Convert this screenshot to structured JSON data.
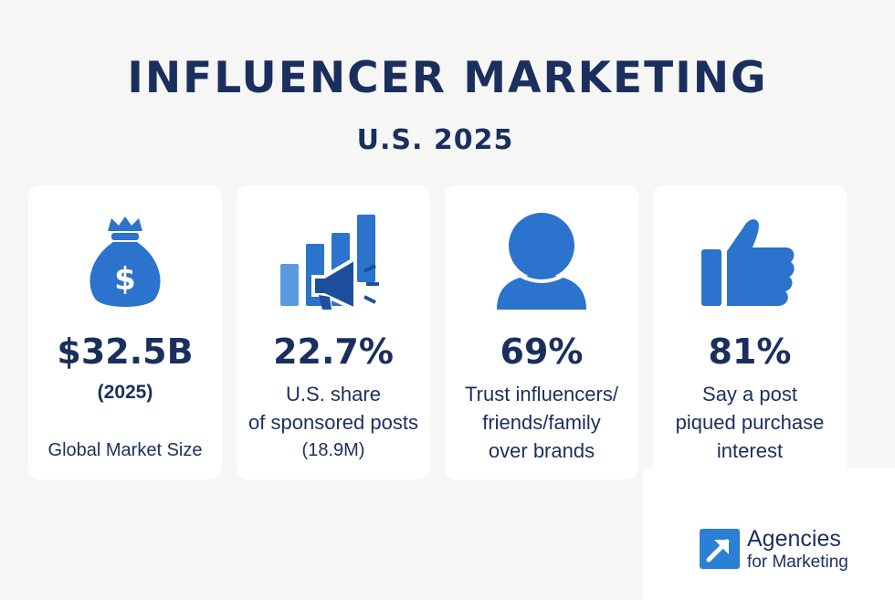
{
  "header": {
    "title": "INFLUENCER MARKETING",
    "subtitle": "U.S. 2025"
  },
  "cards": [
    {
      "icon": "money-bag-icon",
      "value": "$32.5B",
      "year": "(2025)",
      "lines": [
        "Global Market Size"
      ]
    },
    {
      "icon": "megaphone-growth-chart-icon",
      "value": "22.7%",
      "lines": [
        "U.S. share",
        "of sponsored posts",
        "(18.9M)"
      ]
    },
    {
      "icon": "person-icon",
      "value": "69%",
      "lines": [
        "Trust influencers/",
        "friends/family",
        "over brands"
      ]
    },
    {
      "icon": "thumbs-up-icon",
      "value": "81%",
      "lines": [
        "Say a post",
        "piqued purchase",
        "interest"
      ]
    }
  ],
  "logo": {
    "icon": "arrow-up-right-icon",
    "line1": "Agencies",
    "line2": "for Marketing"
  },
  "colors": {
    "background": "#f6f6f4",
    "text_navy": "#1b2f5e",
    "icon_blue": "#2b73cc",
    "icon_dark_blue": "#1d4f9e",
    "icon_light_blue": "#5a9be0"
  }
}
